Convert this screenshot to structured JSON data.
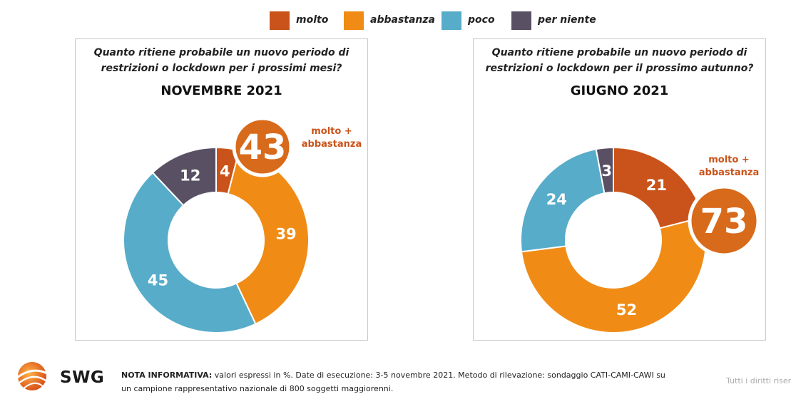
{
  "legend": [
    {
      "label": "molto",
      "color": "#c9531a"
    },
    {
      "label": "abbastanza",
      "color": "#f08c16"
    },
    {
      "label": "poco",
      "color": "#57acc9"
    },
    {
      "label": "per niente",
      "color": "#5a5064"
    }
  ],
  "chart_data": [
    {
      "type": "pie",
      "title": "NOVEMBRE 2021",
      "question": "Quanto ritiene probabile un nuovo periodo di restrizioni o lockdown per i prossimi mesi?",
      "question_lines": [
        "Quanto ritiene probabile un nuovo periodo di",
        "restrizioni o lockdown per i prossimi mesi?"
      ],
      "categories": [
        "molto",
        "abbastanza",
        "poco",
        "per niente"
      ],
      "values": [
        4,
        39,
        45,
        12
      ],
      "highlight": {
        "value": "43",
        "label_lines": [
          "molto +",
          "abbastanza"
        ]
      }
    },
    {
      "type": "pie",
      "title": "GIUGNO 2021",
      "question": "Quanto ritiene probabile un nuovo periodo di restrizioni o lockdown per il prossimo autunno?",
      "question_lines": [
        "Quanto ritiene probabile un nuovo periodo di",
        "restrizioni o lockdown per il prossimo autunno?"
      ],
      "categories": [
        "molto",
        "abbastanza",
        "poco",
        "per niente"
      ],
      "values": [
        21,
        52,
        24,
        3
      ],
      "highlight": {
        "value": "73",
        "label_lines": [
          "molto +",
          "abbastanza"
        ]
      }
    }
  ],
  "footer": {
    "note_label": "NOTA INFORMATIVA:",
    "note_text": " valori espressi in %. Date di esecuzione: 3-5 novembre 2021. Metodo di rilevazione: sondaggio CATI-CAMI-CAWI su un campione rappresentativo nazionale di 800 soggetti maggiorenni.",
    "rights": "Tutti i diritti riser",
    "logo_text": "SWG"
  }
}
